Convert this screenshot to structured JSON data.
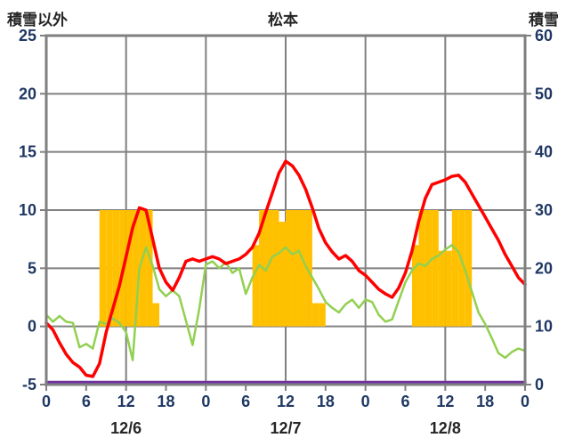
{
  "chart_data": {
    "type": "line",
    "title": "松本",
    "left_axis": {
      "label": "積雪以外",
      "min": -5,
      "max": 25,
      "ticks": [
        25,
        20,
        15,
        10,
        5,
        0,
        -5
      ]
    },
    "right_axis": {
      "label": "積雪",
      "min": 0,
      "max": 60,
      "ticks": [
        60,
        50,
        40,
        30,
        20,
        10,
        0
      ]
    },
    "x_axis": {
      "hours_total": 72,
      "tick_interval": 6,
      "tick_labels": [
        "0",
        "6",
        "12",
        "18",
        "0",
        "6",
        "12",
        "18",
        "0",
        "6",
        "12",
        "18",
        "0"
      ],
      "gridline_hours": [
        12,
        24,
        36,
        48,
        60
      ],
      "date_labels": [
        {
          "label": "12/6",
          "hour": 12
        },
        {
          "label": "12/7",
          "hour": 36
        },
        {
          "label": "12/8",
          "hour": 60
        }
      ]
    },
    "style": {
      "grid_color": "#808080",
      "border_color": "#7F7F7F",
      "tick_label_color": "#1F3864",
      "date_label_color": "#262626",
      "bar_color": "#FFC000",
      "temperature_color": "#FF0000",
      "green_color": "#92D050",
      "snow_color": "#7030A0"
    },
    "series": [
      {
        "name": "sunshine",
        "type": "bar",
        "axis": "left",
        "color": "#FFC000",
        "values": [
          [
            8,
            10
          ],
          [
            9,
            10
          ],
          [
            10,
            10
          ],
          [
            11,
            10
          ],
          [
            12,
            10
          ],
          [
            13,
            10
          ],
          [
            14,
            10
          ],
          [
            15,
            10
          ],
          [
            16,
            2
          ],
          [
            31,
            7
          ],
          [
            32,
            10
          ],
          [
            33,
            10
          ],
          [
            34,
            10
          ],
          [
            35,
            9
          ],
          [
            36,
            10
          ],
          [
            37,
            10
          ],
          [
            38,
            10
          ],
          [
            39,
            10
          ],
          [
            40,
            2
          ],
          [
            41,
            2
          ],
          [
            55,
            7
          ],
          [
            56,
            10
          ],
          [
            57,
            10
          ],
          [
            58,
            10
          ],
          [
            59,
            6.5
          ],
          [
            60,
            6.5
          ],
          [
            61,
            10
          ],
          [
            62,
            10
          ],
          [
            63,
            10
          ]
        ]
      },
      {
        "name": "snow_depth",
        "type": "line",
        "axis": "right",
        "color": "#7030A0",
        "width": 3.5,
        "points": [
          [
            0,
            0
          ],
          [
            72,
            0
          ]
        ]
      },
      {
        "name": "green_series",
        "type": "line",
        "axis": "left",
        "color": "#92D050",
        "width": 2.5,
        "points": [
          [
            0,
            1.0
          ],
          [
            1,
            0.4
          ],
          [
            2,
            0.9
          ],
          [
            3,
            0.4
          ],
          [
            4,
            0.3
          ],
          [
            5,
            -1.8
          ],
          [
            6,
            -1.5
          ],
          [
            7,
            -1.9
          ],
          [
            8,
            0.4
          ],
          [
            9,
            0.2
          ],
          [
            10,
            0.7
          ],
          [
            11,
            0.3
          ],
          [
            12,
            -0.5
          ],
          [
            13,
            -2.9
          ],
          [
            14,
            5.0
          ],
          [
            15,
            6.8
          ],
          [
            16,
            5.2
          ],
          [
            17,
            3.2
          ],
          [
            18,
            2.6
          ],
          [
            19,
            3.1
          ],
          [
            20,
            2.6
          ],
          [
            21,
            0.5
          ],
          [
            22,
            -1.6
          ],
          [
            23,
            1.5
          ],
          [
            24,
            5.3
          ],
          [
            25,
            5.6
          ],
          [
            26,
            5.0
          ],
          [
            27,
            5.5
          ],
          [
            28,
            4.6
          ],
          [
            29,
            5.0
          ],
          [
            30,
            2.8
          ],
          [
            31,
            4.2
          ],
          [
            32,
            5.3
          ],
          [
            33,
            4.8
          ],
          [
            34,
            6.0
          ],
          [
            35,
            6.3
          ],
          [
            36,
            6.8
          ],
          [
            37,
            6.2
          ],
          [
            38,
            6.5
          ],
          [
            39,
            5.2
          ],
          [
            40,
            4.2
          ],
          [
            41,
            3.2
          ],
          [
            42,
            2.1
          ],
          [
            43,
            1.6
          ],
          [
            44,
            1.2
          ],
          [
            45,
            1.9
          ],
          [
            46,
            2.3
          ],
          [
            47,
            1.6
          ],
          [
            48,
            2.3
          ],
          [
            49,
            2.1
          ],
          [
            50,
            1.0
          ],
          [
            51,
            0.4
          ],
          [
            52,
            0.6
          ],
          [
            53,
            2.2
          ],
          [
            54,
            3.8
          ],
          [
            55,
            4.8
          ],
          [
            56,
            5.4
          ],
          [
            57,
            5.2
          ],
          [
            58,
            5.8
          ],
          [
            59,
            6.1
          ],
          [
            60,
            6.6
          ],
          [
            61,
            7.0
          ],
          [
            62,
            6.4
          ],
          [
            63,
            4.8
          ],
          [
            64,
            3.0
          ],
          [
            65,
            1.2
          ],
          [
            66,
            0.2
          ],
          [
            67,
            -1.0
          ],
          [
            68,
            -2.3
          ],
          [
            69,
            -2.7
          ],
          [
            70,
            -2.2
          ],
          [
            71,
            -1.9
          ],
          [
            72,
            -2.1
          ]
        ]
      },
      {
        "name": "temperature",
        "type": "line",
        "axis": "left",
        "color": "#FF0000",
        "width": 3.5,
        "points": [
          [
            0,
            0.3
          ],
          [
            1,
            -0.3
          ],
          [
            2,
            -1.4
          ],
          [
            3,
            -2.4
          ],
          [
            4,
            -3.1
          ],
          [
            5,
            -3.5
          ],
          [
            6,
            -4.2
          ],
          [
            7,
            -4.3
          ],
          [
            8,
            -3.2
          ],
          [
            9,
            -0.5
          ],
          [
            10,
            1.5
          ],
          [
            11,
            3.5
          ],
          [
            12,
            6.0
          ],
          [
            13,
            8.5
          ],
          [
            14,
            10.2
          ],
          [
            15,
            10.0
          ],
          [
            16,
            7.5
          ],
          [
            17,
            5.0
          ],
          [
            18,
            3.8
          ],
          [
            19,
            3.1
          ],
          [
            20,
            4.2
          ],
          [
            21,
            5.6
          ],
          [
            22,
            5.8
          ],
          [
            23,
            5.6
          ],
          [
            24,
            5.8
          ],
          [
            25,
            6.0
          ],
          [
            26,
            5.8
          ],
          [
            27,
            5.4
          ],
          [
            28,
            5.6
          ],
          [
            29,
            5.8
          ],
          [
            30,
            6.2
          ],
          [
            31,
            6.8
          ],
          [
            32,
            8.0
          ],
          [
            33,
            9.8
          ],
          [
            34,
            11.5
          ],
          [
            35,
            13.2
          ],
          [
            36,
            14.2
          ],
          [
            37,
            13.8
          ],
          [
            38,
            13.0
          ],
          [
            39,
            11.8
          ],
          [
            40,
            10.2
          ],
          [
            41,
            8.4
          ],
          [
            42,
            7.2
          ],
          [
            43,
            6.4
          ],
          [
            44,
            5.8
          ],
          [
            45,
            6.1
          ],
          [
            46,
            5.6
          ],
          [
            47,
            4.8
          ],
          [
            48,
            4.4
          ],
          [
            49,
            3.8
          ],
          [
            50,
            3.2
          ],
          [
            51,
            2.8
          ],
          [
            52,
            2.5
          ],
          [
            53,
            3.3
          ],
          [
            54,
            4.6
          ],
          [
            55,
            6.5
          ],
          [
            56,
            9.0
          ],
          [
            57,
            11.0
          ],
          [
            58,
            12.2
          ],
          [
            59,
            12.4
          ],
          [
            60,
            12.6
          ],
          [
            61,
            12.9
          ],
          [
            62,
            13.0
          ],
          [
            63,
            12.4
          ],
          [
            64,
            11.4
          ],
          [
            65,
            10.4
          ],
          [
            66,
            9.4
          ],
          [
            67,
            8.4
          ],
          [
            68,
            7.4
          ],
          [
            69,
            6.2
          ],
          [
            70,
            5.2
          ],
          [
            71,
            4.2
          ],
          [
            72,
            3.6
          ]
        ]
      }
    ]
  }
}
